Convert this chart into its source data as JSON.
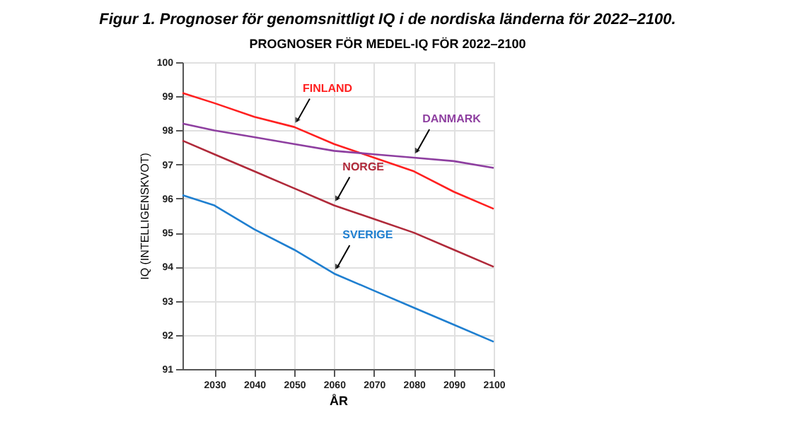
{
  "chart_data": {
    "type": "line",
    "title": "Figur 1. Prognoser för genomsnittligt IQ i de nordiska länderna för 2022–2100.",
    "subtitle": "PROGNOSER FÖR MEDEL-IQ FÖR 2022–2100",
    "xlabel": "ÅR",
    "ylabel": "IQ (INTELLIGENSKVOT)",
    "x": [
      2022,
      2030,
      2040,
      2050,
      2060,
      2070,
      2080,
      2090,
      2100
    ],
    "series": [
      {
        "name": "FINLAND",
        "color": "#ff2020",
        "values": [
          99.1,
          98.8,
          98.4,
          98.1,
          97.6,
          97.2,
          96.8,
          96.2,
          95.7
        ]
      },
      {
        "name": "DANMARK",
        "color": "#8e3fa0",
        "values": [
          98.2,
          98.0,
          97.8,
          97.6,
          97.4,
          97.3,
          97.2,
          97.1,
          96.9
        ]
      },
      {
        "name": "NORGE",
        "color": "#b02a3a",
        "values": [
          97.7,
          97.3,
          96.8,
          96.3,
          95.8,
          95.4,
          95.0,
          94.5,
          94.0
        ]
      },
      {
        "name": "SVERIGE",
        "color": "#1f7fd0",
        "values": [
          96.1,
          95.8,
          95.1,
          94.5,
          93.8,
          93.3,
          92.8,
          92.3,
          91.8
        ]
      }
    ],
    "xlim": [
      2022,
      2100
    ],
    "xticks": [
      2030,
      2040,
      2050,
      2060,
      2070,
      2080,
      2090,
      2100
    ],
    "ylim": [
      91,
      100
    ],
    "yticks": [
      91,
      92,
      93,
      94,
      95,
      96,
      97,
      98,
      99,
      100
    ],
    "grid": true,
    "legend": false,
    "marker": "none",
    "line_style": "solid"
  }
}
